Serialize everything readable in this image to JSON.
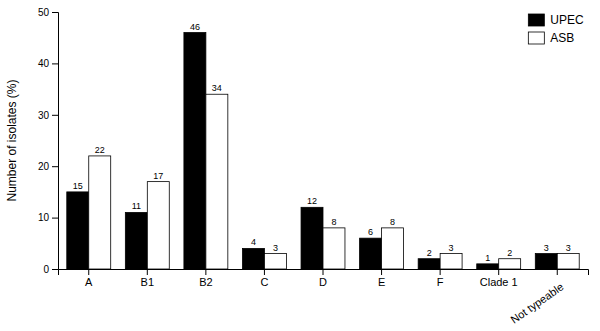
{
  "chart_data": {
    "type": "bar",
    "categories": [
      "A",
      "B1",
      "B2",
      "C",
      "D",
      "E",
      "F",
      "Clade 1",
      "Not typeable"
    ],
    "series": [
      {
        "name": "UPEC",
        "color": "#000000",
        "values": [
          15,
          11,
          46,
          4,
          12,
          6,
          2,
          1,
          3
        ]
      },
      {
        "name": "ASB",
        "color": "#ffffff",
        "values": [
          22,
          17,
          34,
          3,
          8,
          8,
          3,
          2,
          3
        ]
      }
    ],
    "ylabel": "Number of isolates (%)",
    "ylim": [
      0,
      50
    ],
    "yticks": [
      0,
      10,
      20,
      30,
      40,
      50
    ],
    "legend": "upper right",
    "data_labels": true
  }
}
